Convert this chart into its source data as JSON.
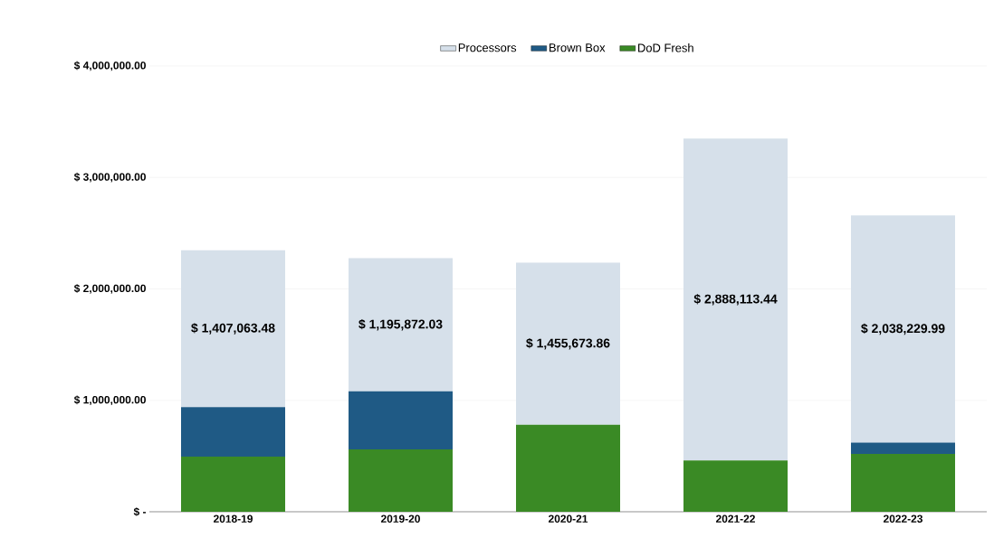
{
  "chart_data": {
    "type": "bar",
    "stacked": true,
    "categories": [
      "2018-19",
      "2019-20",
      "2020-21",
      "2021-22",
      "2022-23"
    ],
    "series": [
      {
        "name": "DoD Fresh",
        "color": "#3a8a25",
        "values": [
          495000,
          560000,
          780000,
          460000,
          520000
        ]
      },
      {
        "name": "Brown Box",
        "color": "#1f5a85",
        "values": [
          445000,
          520000,
          0,
          0,
          100000
        ]
      },
      {
        "name": "Processors",
        "color": "#d6e0ea",
        "values": [
          1407063.48,
          1195872.03,
          1455673.86,
          2888113.44,
          2038229.99
        ],
        "value_labels": [
          "$ 1,407,063.48",
          "$ 1,195,872.03",
          "$ 1,455,673.86",
          "$ 2,888,113.44",
          "$ 2,038,229.99"
        ]
      }
    ],
    "ylim": [
      0,
      4000000
    ],
    "yticks": [
      {
        "value": 0,
        "label": "$ -"
      },
      {
        "value": 1000000,
        "label": "$ 1,000,000.00"
      },
      {
        "value": 2000000,
        "label": "$ 2,000,000.00"
      },
      {
        "value": 3000000,
        "label": "$ 3,000,000.00"
      },
      {
        "value": 4000000,
        "label": "$ 4,000,000.00"
      }
    ],
    "grid": "y",
    "legend": "top"
  }
}
